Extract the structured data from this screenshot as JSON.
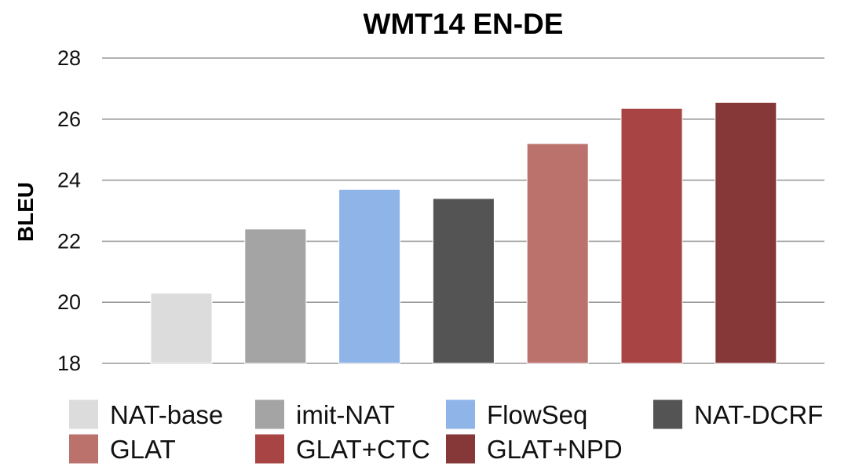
{
  "chart_data": {
    "type": "bar",
    "title": "WMT14 EN-DE",
    "xlabel": "",
    "ylabel": "BLEU",
    "ylim": [
      18,
      28
    ],
    "yticks": [
      18,
      20,
      22,
      24,
      26,
      28
    ],
    "grid": true,
    "legend_position": "bottom",
    "series": [
      {
        "name": "NAT-base",
        "value": 20.3,
        "color": "#dcdcdc"
      },
      {
        "name": "imit-NAT",
        "value": 22.4,
        "color": "#a4a4a4"
      },
      {
        "name": "FlowSeq",
        "value": 23.7,
        "color": "#8fb4e8"
      },
      {
        "name": "NAT-DCRF",
        "value": 23.4,
        "color": "#545454"
      },
      {
        "name": "GLAT",
        "value": 25.2,
        "color": "#bb726c"
      },
      {
        "name": "GLAT+CTC",
        "value": 26.35,
        "color": "#a84443"
      },
      {
        "name": "GLAT+NPD",
        "value": 26.55,
        "color": "#863738"
      }
    ]
  }
}
